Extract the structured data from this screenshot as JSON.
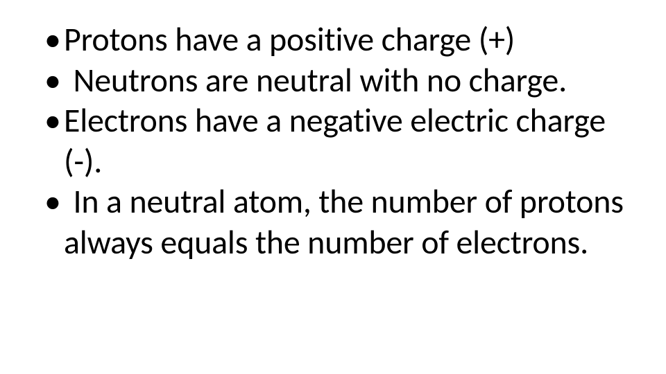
{
  "slide": {
    "background_color": "#ffffff",
    "text_color": "#000000",
    "font_family": "Calibri",
    "font_size_pt": 36,
    "line_height": 1.22,
    "bullets": [
      {
        "text": "Protons have a positive charge (+)",
        "leading_space": false
      },
      {
        "text": "Neutrons are neutral with no charge.",
        "leading_space": true
      },
      {
        "text": "Electrons have a negative electric charge (-).",
        "leading_space": false
      },
      {
        "text": "In a neutral atom, the number of protons always equals the number of electrons.",
        "leading_space": true
      }
    ]
  }
}
